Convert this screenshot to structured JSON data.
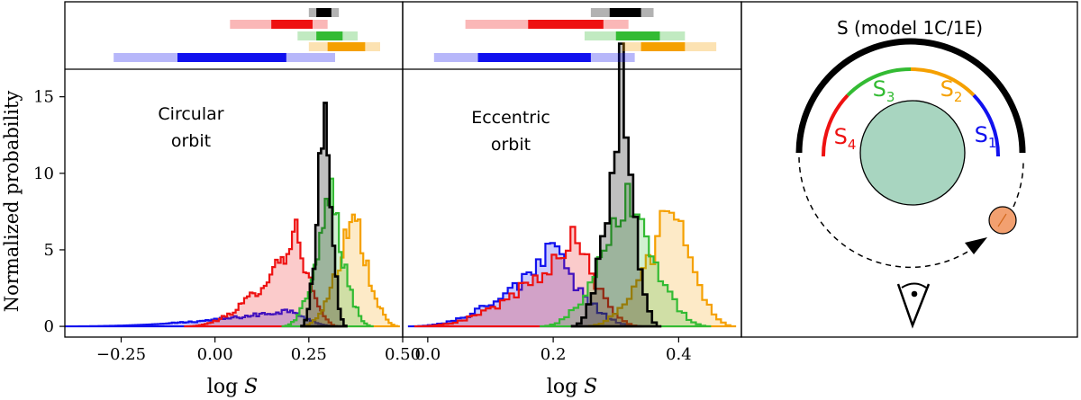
{
  "colors": {
    "black": "#000000",
    "red": "#ee1111",
    "green": "#33bb33",
    "orange": "#f5a000",
    "blue": "#1111ee",
    "star": "#a8d5c0",
    "planet": "#f2a070"
  },
  "series_order": [
    "S",
    "S4",
    "S3",
    "S2",
    "S1"
  ],
  "chart_data": [
    {
      "type": "histogram",
      "annotation": [
        "Circular",
        "orbit"
      ],
      "xlabel": "log S",
      "ylabel": "Normalized probability",
      "xlim": [
        -0.4,
        0.5
      ],
      "ylim": [
        -0.7,
        16.8
      ],
      "xticks": [
        -0.25,
        0.0,
        0.25,
        0.5
      ],
      "xtick_labels": [
        "−0.25",
        "0.00",
        "0.25",
        "0.50"
      ],
      "yticks": [
        0,
        5,
        10,
        15
      ],
      "ytick_labels": [
        "0",
        "5",
        "10",
        "15"
      ],
      "series": [
        {
          "key": "S1",
          "color": "blue",
          "peak": [
            0.21,
            1.1
          ],
          "support": [
            -0.4,
            0.33
          ],
          "interval68": [
            -0.1,
            0.19
          ],
          "interval95": [
            -0.27,
            0.32
          ]
        },
        {
          "key": "S4",
          "color": "red",
          "peak": [
            0.22,
            6.3
          ],
          "support": [
            -0.08,
            0.33
          ],
          "interval68": [
            0.15,
            0.26
          ],
          "interval95": [
            0.04,
            0.3
          ]
        },
        {
          "key": "S3",
          "color": "green",
          "peak": [
            0.31,
            9.3
          ],
          "support": [
            0.18,
            0.42
          ],
          "interval68": [
            0.27,
            0.34
          ],
          "interval95": [
            0.22,
            0.38
          ]
        },
        {
          "key": "S2",
          "color": "orange",
          "peak": [
            0.37,
            8.7
          ],
          "support": [
            0.23,
            0.49
          ],
          "interval68": [
            0.3,
            0.4
          ],
          "interval95": [
            0.25,
            0.44
          ]
        },
        {
          "key": "S",
          "color": "black",
          "peak": [
            0.292,
            16.3
          ],
          "support": [
            0.23,
            0.35
          ],
          "interval68": [
            0.27,
            0.31
          ],
          "interval95": [
            0.25,
            0.33
          ]
        }
      ]
    },
    {
      "type": "histogram",
      "annotation": [
        "Eccentric",
        "orbit"
      ],
      "xlabel": "log S",
      "xlim": [
        -0.04,
        0.5
      ],
      "ylim": [
        -0.7,
        16.8
      ],
      "xticks": [
        0.0,
        0.2,
        0.4
      ],
      "xtick_labels": [
        "0.0",
        "0.2",
        "0.4"
      ],
      "series": [
        {
          "key": "S1",
          "color": "blue",
          "peak": [
            0.2,
            5.2
          ],
          "support": [
            -0.03,
            0.34
          ],
          "interval68": [
            0.08,
            0.26
          ],
          "interval95": [
            0.01,
            0.33
          ]
        },
        {
          "key": "S4",
          "color": "red",
          "peak": [
            0.24,
            6.3
          ],
          "support": [
            -0.02,
            0.34
          ],
          "interval68": [
            0.16,
            0.28
          ],
          "interval95": [
            0.06,
            0.32
          ]
        },
        {
          "key": "S3",
          "color": "green",
          "peak": [
            0.32,
            9.7
          ],
          "support": [
            0.18,
            0.45
          ],
          "interval68": [
            0.3,
            0.37
          ],
          "interval95": [
            0.25,
            0.41
          ]
        },
        {
          "key": "S2",
          "color": "orange",
          "peak": [
            0.39,
            8.5
          ],
          "support": [
            0.25,
            0.49
          ],
          "interval68": [
            0.34,
            0.41
          ],
          "interval95": [
            0.31,
            0.46
          ]
        },
        {
          "key": "S",
          "color": "black",
          "peak": [
            0.31,
            16.3
          ],
          "support": [
            0.23,
            0.37
          ],
          "interval68": [
            0.29,
            0.34
          ],
          "interval95": [
            0.26,
            0.36
          ]
        }
      ]
    }
  ],
  "diagram": {
    "title": "S (model 1C/1E)",
    "labels": [
      {
        "key": "S4",
        "main": "S",
        "sub": "4",
        "color": "red"
      },
      {
        "key": "S3",
        "main": "S",
        "sub": "3",
        "color": "green"
      },
      {
        "key": "S2",
        "main": "S",
        "sub": "2",
        "color": "orange"
      },
      {
        "key": "S1",
        "main": "S",
        "sub": "1",
        "color": "blue"
      }
    ]
  }
}
